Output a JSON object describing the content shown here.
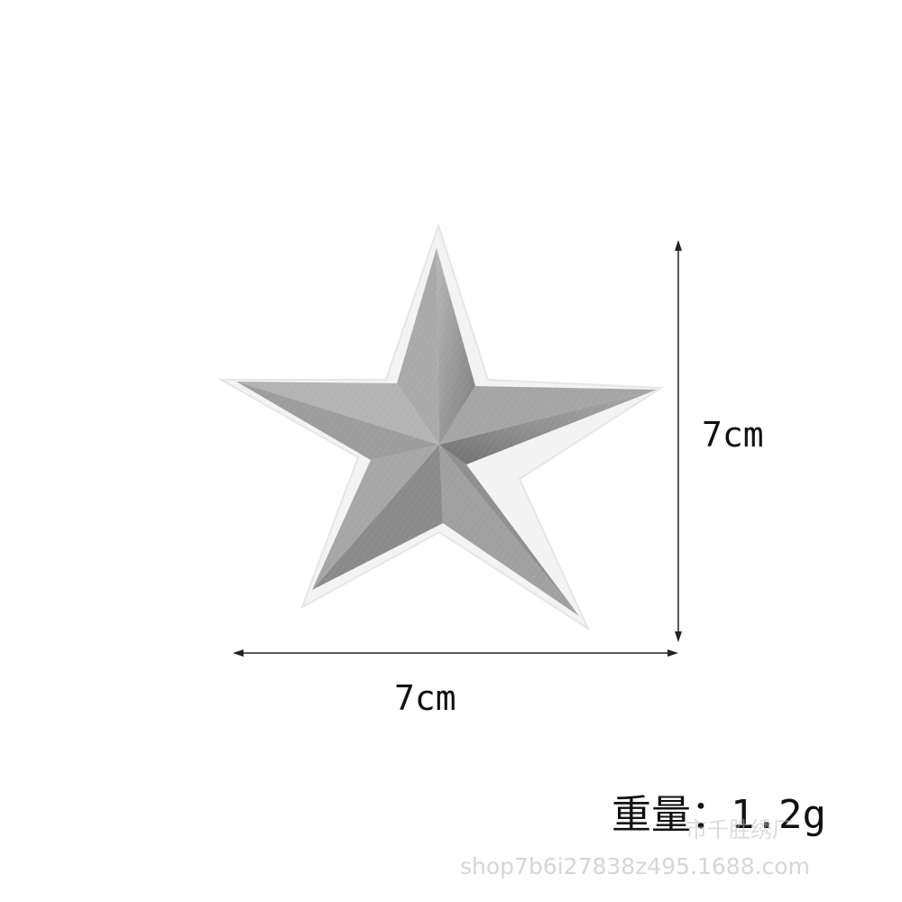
{
  "product": {
    "name": "star-patch",
    "color": "#9c9c9c",
    "backing_color": "#f2f2f2"
  },
  "dimensions": {
    "height_label": "7cm",
    "width_label": "7cm"
  },
  "weight": {
    "label": "重量：1.2g"
  },
  "watermark": {
    "seller": "市千胜绣厂",
    "url": "shop7b6i27838z495.1688.com"
  }
}
